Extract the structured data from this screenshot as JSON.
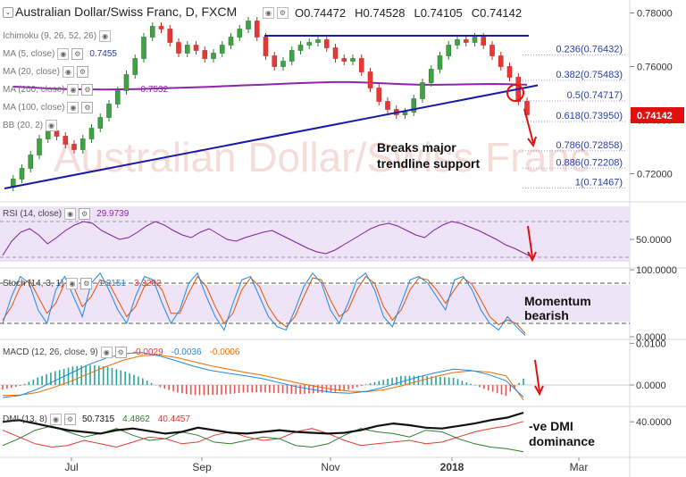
{
  "header": {
    "title": "Australian Dollar/Swiss Franc, D, FXCM",
    "open": "O0.74472",
    "high": "H0.74528",
    "low": "L0.74105",
    "close": "C0.74142"
  },
  "indicators": {
    "ichimoku": {
      "label": "Ichimoku (9, 26, 52, 26)"
    },
    "ma5": {
      "label": "MA (5, close)",
      "value": "0.7455"
    },
    "ma20": {
      "label": "MA (20, close)"
    },
    "ma200": {
      "label": "MA (200, close)",
      "value": "0.7532"
    },
    "ma100": {
      "label": "MA (100, close)"
    },
    "bb": {
      "label": "BB (20, 2)"
    }
  },
  "annotations": {
    "breaks": "Breaks major trendline support",
    "breaks_line1": "Breaks major",
    "breaks_line2": "trendline support",
    "momentum_line1": "Momentum",
    "momentum_line2": "bearish",
    "dmi_line1": "-ve DMI",
    "dmi_line2": "dominance"
  },
  "watermark": "Australian Dollar/Swiss Franc",
  "colors": {
    "fib_text": "#2a3fa0",
    "price_badge": "#e01010",
    "trendline": "#1a1aa8",
    "ma200": "#8e24aa",
    "rsi_fill": "#efe3f7",
    "arrow": "#e01010",
    "up_candle": "#2e7d32",
    "down_candle": "#c62828"
  },
  "chart_data": {
    "type": "candlestick",
    "symbol": "AUD/CHF",
    "timeframe": "D",
    "x_tick_labels": [
      "Jul",
      "Sep",
      "Nov",
      "2018",
      "Mar"
    ],
    "price_axis": {
      "ticks": [
        "0.78000",
        "0.76000",
        "0.74000",
        "0.72000"
      ],
      "ylim": [
        0.7115,
        0.7815
      ]
    },
    "last_price": "0.74142",
    "approx_close_series": [
      0.715,
      0.718,
      0.722,
      0.727,
      0.733,
      0.736,
      0.734,
      0.731,
      0.729,
      0.733,
      0.737,
      0.741,
      0.746,
      0.751,
      0.757,
      0.763,
      0.771,
      0.775,
      0.774,
      0.769,
      0.765,
      0.768,
      0.766,
      0.763,
      0.765,
      0.768,
      0.771,
      0.774,
      0.777,
      0.771,
      0.764,
      0.76,
      0.762,
      0.766,
      0.768,
      0.769,
      0.77,
      0.767,
      0.763,
      0.762,
      0.763,
      0.758,
      0.752,
      0.747,
      0.744,
      0.742,
      0.743,
      0.748,
      0.754,
      0.759,
      0.764,
      0.768,
      0.77,
      0.769,
      0.771,
      0.768,
      0.764,
      0.76,
      0.756,
      0.747,
      0.742
    ],
    "fibonacci_levels": [
      {
        "label": "0.236(0.76432)",
        "value": 0.76432
      },
      {
        "label": "0.382(0.75483)",
        "value": 0.75483
      },
      {
        "label": "0.5(0.74717)",
        "value": 0.74717
      },
      {
        "label": "0.618(0.73950)",
        "value": 0.7395
      },
      {
        "label": "0.786(0.72858)",
        "value": 0.72858
      },
      {
        "label": "0.886(0.72208)",
        "value": 0.72208
      },
      {
        "label": "1(0.71467)",
        "value": 0.71467
      }
    ],
    "resistance_line": 0.7715,
    "trendline": {
      "from": [
        0,
        0.7145
      ],
      "to": [
        60,
        0.753
      ]
    },
    "ma200_series": [
      0.7525,
      0.7522,
      0.7518,
      0.7516,
      0.7515,
      0.7514,
      0.7515,
      0.7516,
      0.7518,
      0.752,
      0.7522,
      0.7524,
      0.7527,
      0.753,
      0.7532,
      0.7535,
      0.7538,
      0.754,
      0.7542,
      0.7542,
      0.754,
      0.7537,
      0.7534,
      0.7532,
      0.7532,
      0.7533,
      0.7534,
      0.7535,
      0.7534,
      0.7532
    ],
    "rsi": {
      "label": "RSI (14, close)",
      "value": "29.9739",
      "axis_ticks": [
        "50.0000"
      ],
      "ylim": [
        20,
        90
      ],
      "upper": 70,
      "lower": 30,
      "series": [
        32,
        48,
        58,
        62,
        55,
        45,
        52,
        60,
        66,
        70,
        68,
        60,
        55,
        50,
        52,
        58,
        65,
        70,
        66,
        60,
        55,
        52,
        58,
        62,
        56,
        50,
        48,
        52,
        55,
        58,
        60,
        55,
        50,
        45,
        40,
        36,
        34,
        38,
        44,
        50,
        56,
        62,
        66,
        68,
        65,
        60,
        55,
        52,
        60,
        66,
        70,
        68,
        64,
        60,
        55,
        50,
        44,
        40,
        35,
        30
      ]
    },
    "stoch": {
      "label": "Stoch (14, 3, 1)",
      "values": [
        "1.2151",
        "3.3202"
      ],
      "axis_ticks": [
        "100.0000",
        "0.0000"
      ],
      "ylim": [
        0,
        100
      ],
      "upper": 80,
      "lower": 20,
      "k_series": [
        20,
        60,
        90,
        80,
        40,
        20,
        70,
        90,
        60,
        30,
        80,
        95,
        70,
        40,
        20,
        60,
        90,
        85,
        50,
        20,
        40,
        80,
        95,
        60,
        30,
        10,
        50,
        85,
        90,
        60,
        30,
        15,
        10,
        40,
        75,
        95,
        80,
        40,
        20,
        50,
        85,
        95,
        70,
        30,
        15,
        50,
        85,
        90,
        80,
        60,
        40,
        85,
        90,
        70,
        40,
        20,
        10,
        30,
        15,
        2
      ],
      "d_series": [
        25,
        45,
        75,
        85,
        60,
        35,
        50,
        80,
        75,
        45,
        60,
        85,
        80,
        55,
        30,
        45,
        75,
        85,
        70,
        35,
        35,
        65,
        90,
        75,
        45,
        20,
        35,
        70,
        88,
        75,
        45,
        25,
        15,
        30,
        60,
        88,
        85,
        55,
        30,
        40,
        70,
        90,
        80,
        45,
        25,
        40,
        70,
        88,
        85,
        70,
        50,
        70,
        88,
        78,
        55,
        30,
        18,
        25,
        20,
        5
      ]
    },
    "macd": {
      "label": "MACD (12, 26, close, 9)",
      "values": [
        "-0.0029",
        "-0.0036",
        "-0.0006"
      ],
      "axis_ticks": [
        "0.0100",
        "0.0000"
      ],
      "ylim": [
        -0.0045,
        0.0105
      ],
      "macd_series": [
        -0.003,
        -0.0025,
        -0.001,
        0.001,
        0.003,
        0.005,
        0.0065,
        0.0075,
        0.0078,
        0.007,
        0.0058,
        0.0045,
        0.0035,
        0.0028,
        0.0022,
        0.0015,
        0.0005,
        -0.0005,
        -0.0012,
        -0.0018,
        -0.002,
        -0.0015,
        -0.0005,
        0.0008,
        0.002,
        0.003,
        0.0038,
        0.0035,
        0.0025,
        0.001,
        -0.0029
      ],
      "signal_series": [
        -0.0025,
        -0.0024,
        -0.0018,
        -0.0005,
        0.001,
        0.0028,
        0.0045,
        0.006,
        0.007,
        0.0072,
        0.0066,
        0.0056,
        0.0046,
        0.0038,
        0.003,
        0.0023,
        0.0014,
        0.0005,
        -0.0003,
        -0.001,
        -0.0015,
        -0.0016,
        -0.0011,
        -0.0002,
        0.001,
        0.0021,
        0.003,
        0.0034,
        0.0031,
        0.0022,
        -0.0036
      ]
    },
    "dmi": {
      "label": "DMI (13, 8)",
      "values": [
        "50.7315",
        "4.4862",
        "40.4457"
      ],
      "axis_ticks": [
        "40.0000"
      ],
      "ylim": [
        0,
        55
      ],
      "adx_series": [
        40,
        42,
        38,
        34,
        30,
        28,
        26,
        30,
        32,
        29,
        26,
        28,
        33,
        30,
        27,
        26,
        28,
        30,
        28,
        27,
        26,
        27,
        30,
        35,
        38,
        36,
        33,
        32,
        35,
        38,
        42,
        45,
        50.73
      ],
      "plus_di_series": [
        12,
        20,
        30,
        35,
        28,
        22,
        26,
        32,
        24,
        18,
        20,
        28,
        24,
        16,
        14,
        18,
        22,
        20,
        12,
        10,
        14,
        24,
        32,
        28,
        26,
        22,
        30,
        28,
        20,
        14,
        10,
        8,
        4.49
      ],
      "minus_di_series": [
        30,
        22,
        14,
        10,
        12,
        18,
        14,
        10,
        16,
        22,
        20,
        14,
        16,
        24,
        28,
        22,
        18,
        20,
        28,
        32,
        26,
        18,
        12,
        14,
        16,
        18,
        14,
        16,
        22,
        28,
        32,
        35,
        40.45
      ]
    }
  }
}
